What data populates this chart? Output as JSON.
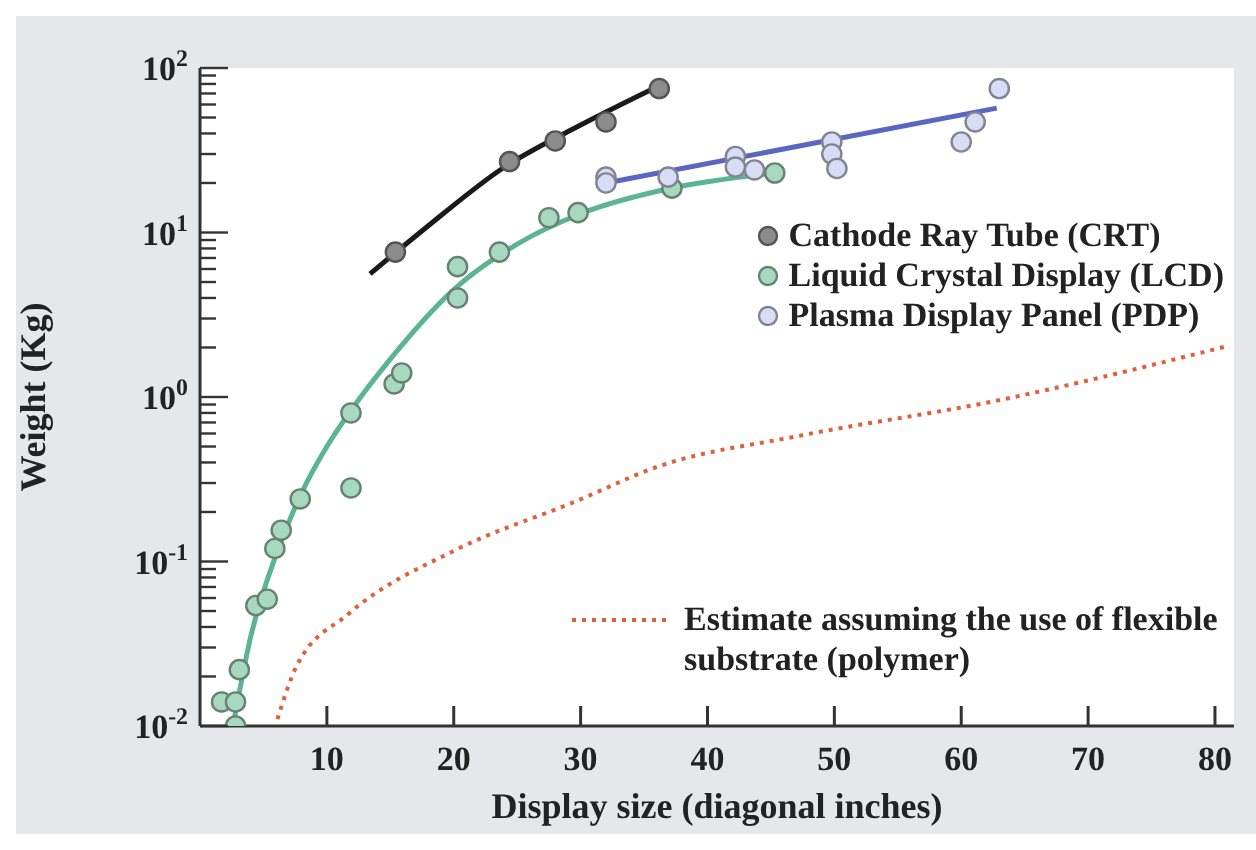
{
  "chart_data": {
    "type": "scatter",
    "xlabel": "Display size (diagonal inches)",
    "ylabel": "Weight (Kg)",
    "xlim": [
      0,
      81.5
    ],
    "xticks": [
      10,
      20,
      30,
      40,
      50,
      60,
      70,
      80
    ],
    "ylim": [
      0.01,
      100
    ],
    "log": "y",
    "yticks": [
      {
        "value": 0.01,
        "label": "10$^{-2}$"
      },
      {
        "value": 0.02,
        "label": null
      },
      {
        "value": 0.03,
        "label": null
      },
      {
        "value": 0.04,
        "label": null
      },
      {
        "value": 0.05,
        "label": null
      },
      {
        "value": 0.06,
        "label": null
      },
      {
        "value": 0.07,
        "label": null
      },
      {
        "value": 0.08,
        "label": null
      },
      {
        "value": 0.09,
        "label": null
      },
      {
        "value": 0.1,
        "label": "10$^{-1}$"
      },
      {
        "value": 0.2,
        "label": null
      },
      {
        "value": 0.3,
        "label": null
      },
      {
        "value": 0.4,
        "label": null
      },
      {
        "value": 0.5,
        "label": null
      },
      {
        "value": 0.6,
        "label": null
      },
      {
        "value": 0.7,
        "label": null
      },
      {
        "value": 0.8,
        "label": null
      },
      {
        "value": 0.9,
        "label": null
      },
      {
        "value": 1,
        "label": "10$^{0}$"
      },
      {
        "value": 2,
        "label": null
      },
      {
        "value": 3,
        "label": null
      },
      {
        "value": 4,
        "label": null
      },
      {
        "value": 5,
        "label": null
      },
      {
        "value": 6,
        "label": null
      },
      {
        "value": 7,
        "label": null
      },
      {
        "value": 8,
        "label": null
      },
      {
        "value": 9,
        "label": null
      },
      {
        "value": 10,
        "label": "10$^{1}$"
      },
      {
        "value": 20,
        "label": null
      },
      {
        "value": 30,
        "label": null
      },
      {
        "value": 40,
        "label": null
      },
      {
        "value": 50,
        "label": null
      },
      {
        "value": 60,
        "label": null
      },
      {
        "value": 70,
        "label": null
      },
      {
        "value": 80,
        "label": null
      },
      {
        "value": 90,
        "label": null
      },
      {
        "value": 100,
        "label": "10$^{2}$"
      }
    ],
    "legend": "right",
    "marker": "circle",
    "series": [
      {
        "type": "line",
        "marker": "none",
        "color": "#1a1a1a",
        "x": [
          13.4,
          18,
          24,
          30,
          36.2
        ],
        "values": [
          5.6,
          11,
          25,
          45,
          78
        ]
      },
      {
        "type": "line",
        "marker": "none",
        "color": "#5cb592",
        "x": [
          2.6,
          4,
          6,
          8,
          10,
          12,
          15,
          20,
          25,
          30,
          37,
          45.3
        ],
        "values": [
          0.01,
          0.035,
          0.11,
          0.26,
          0.5,
          0.85,
          1.7,
          4.5,
          8.5,
          13,
          18.5,
          23
        ]
      },
      {
        "type": "line",
        "marker": "none",
        "color": "#5a66c0",
        "x": [
          32,
          62.8
        ],
        "values": [
          20,
          57
        ]
      },
      {
        "name": "Cathode Ray Tube (CRT)",
        "color": "#8c8c8c",
        "x": [
          15.4,
          24.4,
          28,
          32,
          36.2
        ],
        "values": [
          7.6,
          27,
          36,
          47,
          75
        ]
      },
      {
        "name": "Liquid Crystal Display (LCD)",
        "color": "#a8d8c0",
        "x": [
          1.7,
          2.8,
          2.8,
          3.1,
          4.4,
          5.3,
          5.9,
          6.4,
          7.9,
          11.9,
          11.9,
          15.3,
          15.9,
          20.3,
          20.3,
          23.6,
          27.5,
          29.8,
          37.2,
          45.3
        ],
        "values": [
          0.014,
          0.014,
          0.01,
          0.022,
          0.054,
          0.059,
          0.12,
          0.155,
          0.24,
          0.28,
          0.8,
          1.2,
          1.4,
          4,
          6.2,
          7.6,
          12.3,
          13.2,
          18.6,
          23
        ]
      },
      {
        "name": "Plasma Display Panel (PDP)",
        "color": "#d8dcf5",
        "x": [
          32,
          32,
          36.9,
          42.2,
          42.2,
          43.7,
          49.8,
          49.8,
          50.2,
          60,
          61.1,
          63
        ],
        "values": [
          21.7,
          20,
          21.7,
          29,
          25,
          24,
          35.5,
          30,
          24.5,
          35.5,
          47,
          75
        ]
      },
      {
        "name": "Estimate assuming the use of flexible substrate (polymer)",
        "type": "line",
        "marker": "none",
        "line_style": "dotted",
        "color": "#e0603c",
        "x": [
          6.1,
          7.6,
          11.7,
          20.1,
          29.5,
          36.2,
          47.2,
          62.8,
          81.1
        ],
        "values": [
          0.011,
          0.023,
          0.048,
          0.117,
          0.23,
          0.38,
          0.58,
          0.95,
          2.05
        ]
      }
    ]
  }
}
